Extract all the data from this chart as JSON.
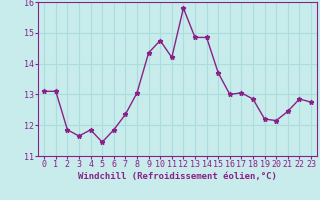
{
  "x": [
    0,
    1,
    2,
    3,
    4,
    5,
    6,
    7,
    8,
    9,
    10,
    11,
    12,
    13,
    14,
    15,
    16,
    17,
    18,
    19,
    20,
    21,
    22,
    23
  ],
  "y": [
    13.1,
    13.1,
    11.85,
    11.65,
    11.85,
    11.45,
    11.85,
    12.35,
    13.05,
    14.35,
    14.75,
    14.2,
    15.8,
    14.85,
    14.85,
    13.7,
    13.0,
    13.05,
    12.85,
    12.2,
    12.15,
    12.45,
    12.85,
    12.75
  ],
  "line_color": "#882288",
  "marker": "*",
  "marker_size": 3.5,
  "bg_color": "#c8ebeb",
  "grid_color": "#aadddd",
  "xlabel": "Windchill (Refroidissement éolien,°C)",
  "xlim": [
    -0.5,
    23.5
  ],
  "ylim": [
    11,
    16
  ],
  "yticks": [
    11,
    12,
    13,
    14,
    15,
    16
  ],
  "xticks": [
    0,
    1,
    2,
    3,
    4,
    5,
    6,
    7,
    8,
    9,
    10,
    11,
    12,
    13,
    14,
    15,
    16,
    17,
    18,
    19,
    20,
    21,
    22,
    23
  ],
  "xlabel_fontsize": 6.5,
  "tick_fontsize": 6.0,
  "line_width": 1.0
}
